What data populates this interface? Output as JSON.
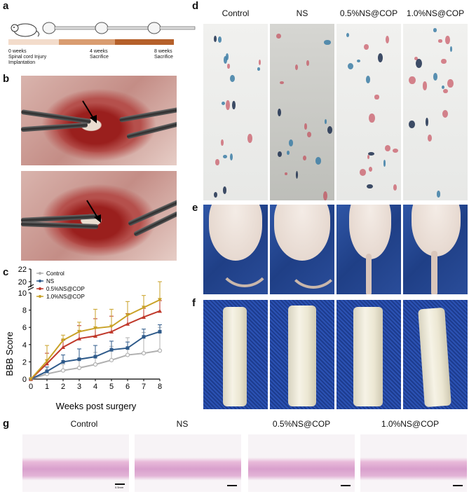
{
  "panels": {
    "a": {
      "label": "a",
      "timeline": [
        {
          "week": "0 weeks",
          "line2": "Spinal cord Injury",
          "line3": "Implantation"
        },
        {
          "week": "4 weeks",
          "line2": "Sacrifice",
          "line3": ""
        },
        {
          "week": "8 weeks",
          "line2": "Sacrifice",
          "line3": ""
        }
      ],
      "colors": [
        "#f3dccb",
        "#d99c70",
        "#b5602a"
      ]
    },
    "b": {
      "label": "b"
    },
    "c": {
      "label": "c"
    },
    "d": {
      "label": "d"
    },
    "e": {
      "label": "e"
    },
    "f": {
      "label": "f"
    },
    "g": {
      "label": "g",
      "scale_label": "0.5mm"
    }
  },
  "groups": [
    "Control",
    "NS",
    "0.5%NS@COP",
    "1.0%NS@COP"
  ],
  "chart_data": {
    "type": "line",
    "xlabel": "Weeks post surgery",
    "ylabel": "BBB Score",
    "x": [
      0,
      1,
      2,
      3,
      4,
      5,
      6,
      7,
      8
    ],
    "xlim": [
      0,
      8
    ],
    "ylim": [
      0,
      22
    ],
    "yticks": [
      0,
      2,
      4,
      6,
      8,
      10,
      20,
      22
    ],
    "axis_break": true,
    "legend_position": "top-left",
    "series": [
      {
        "name": "Control",
        "color": "#b0b0b0",
        "marker": "circle-open",
        "values": [
          0,
          0.6,
          1.0,
          1.3,
          1.7,
          2.2,
          2.8,
          3.0,
          3.3
        ],
        "errors": [
          0,
          0.4,
          0.7,
          1.1,
          1.4,
          1.6,
          2.0,
          2.4,
          2.7
        ]
      },
      {
        "name": "NS",
        "color": "#2e5a8a",
        "marker": "square",
        "values": [
          0,
          0.9,
          2.0,
          2.3,
          2.6,
          3.4,
          3.6,
          4.9,
          5.5
        ],
        "errors": [
          0,
          0.5,
          0.8,
          1.2,
          1.3,
          1.0,
          0.7,
          0.9,
          0.8
        ]
      },
      {
        "name": "0.5%NS@COP",
        "color": "#c0392b",
        "marker": "triangle-up",
        "values": [
          0,
          1.8,
          3.7,
          4.7,
          5.0,
          5.5,
          6.4,
          7.2,
          7.9
        ],
        "errors": [
          0,
          1.2,
          0.8,
          1.5,
          2.0,
          1.8,
          1.2,
          1.0,
          1.2
        ]
      },
      {
        "name": "1.0%NS@COP",
        "color": "#c9a227",
        "marker": "triangle-down",
        "values": [
          0,
          2.1,
          4.5,
          5.5,
          5.9,
          6.1,
          7.4,
          8.3,
          9.2
        ],
        "errors": [
          0,
          1.8,
          0.6,
          1.1,
          2.2,
          2.0,
          1.6,
          1.4,
          1.5
        ]
      }
    ]
  }
}
